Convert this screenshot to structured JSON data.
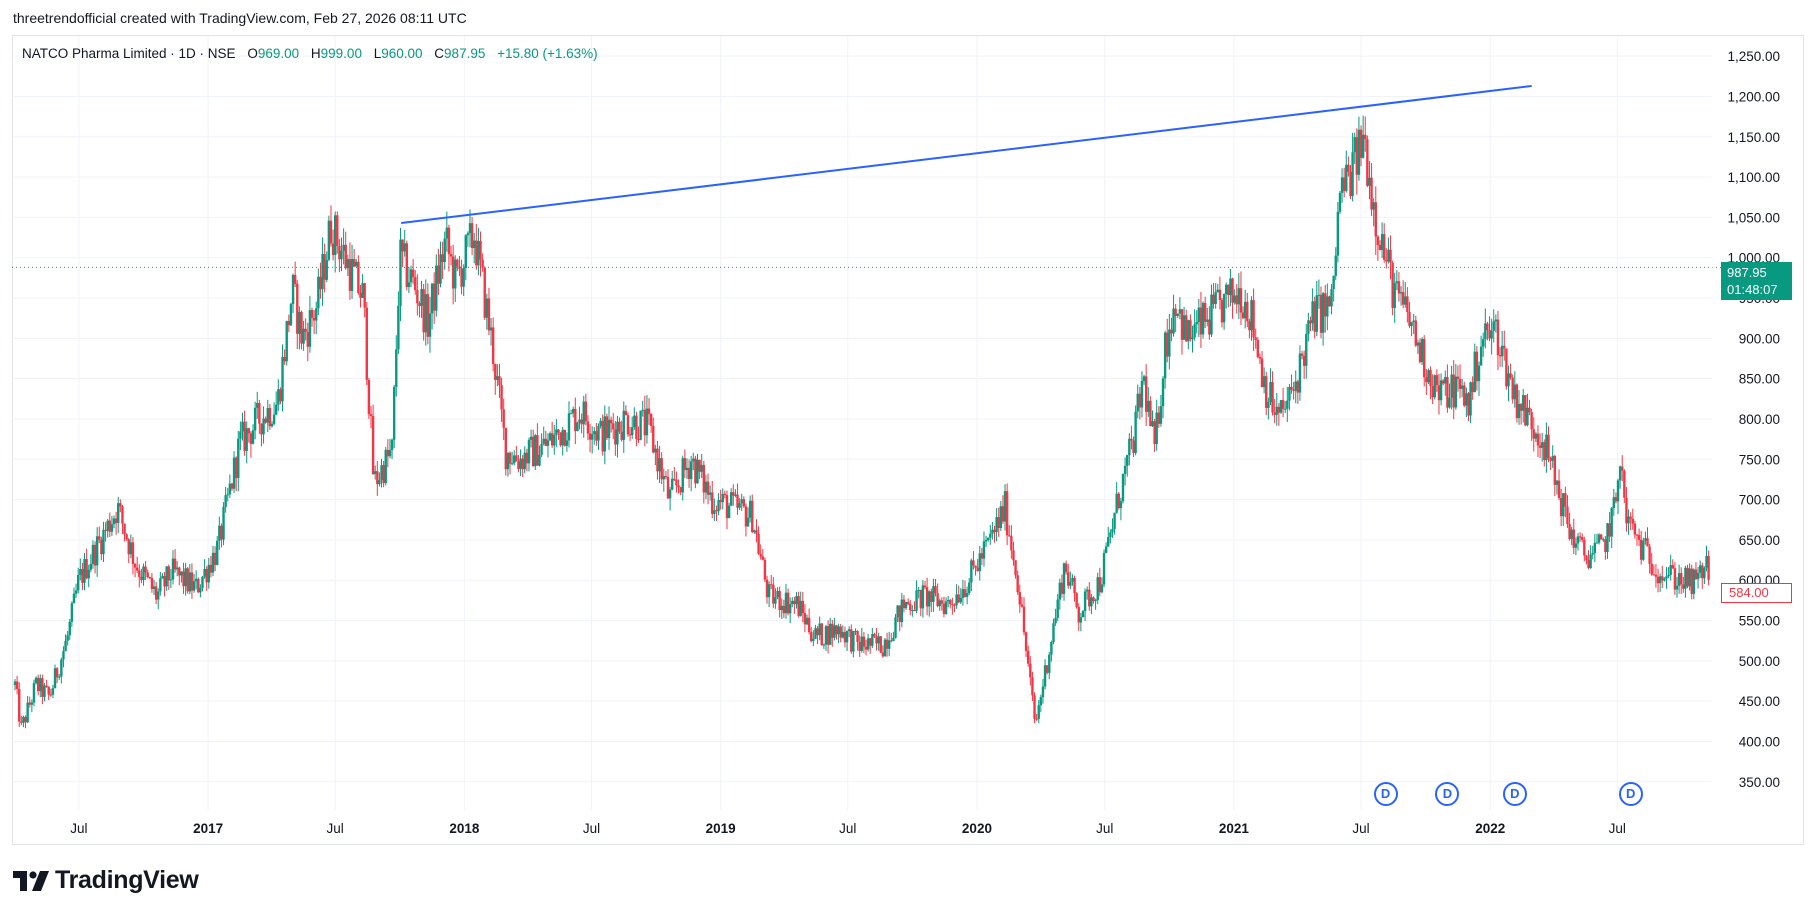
{
  "header": {
    "credit": "threetrendofficial created with TradingView.com, Feb 27, 2026 08:11 UTC"
  },
  "legend": {
    "symbol": "NATCO Pharma Limited · 1D · NSE",
    "open_label": "O",
    "open": "969.00",
    "high_label": "H",
    "high": "999.00",
    "low_label": "L",
    "low": "960.00",
    "close": "987.95",
    "change": "+15.80 (+1.63%)"
  },
  "price_tags": {
    "last_price": "987.95",
    "countdown": "01:48:07",
    "low_marker": "584.00"
  },
  "dividend_badges": [
    "D",
    "D",
    "D",
    "D"
  ],
  "brand": {
    "name": "TradingView"
  },
  "colors": {
    "up": "#089981",
    "down": "#f23645",
    "trendline": "#2962ff",
    "grid": "#f0f3fa",
    "axis_text": "#131722"
  },
  "chart_data": {
    "type": "candlestick",
    "title": "NATCO Pharma Limited · 1D · NSE",
    "xlabel": "",
    "ylabel": "",
    "ylim": [
      315,
      1275
    ],
    "x_range": [
      "2016-04-01",
      "2022-11-10"
    ],
    "y_ticks": [
      "350.00",
      "400.00",
      "450.00",
      "500.00",
      "550.00",
      "600.00",
      "650.00",
      "700.00",
      "750.00",
      "800.00",
      "850.00",
      "900.00",
      "950.00",
      "1,000.00",
      "1,050.00",
      "1,100.00",
      "1,150.00",
      "1,200.00",
      "1,250.00"
    ],
    "y_tick_values": [
      350,
      400,
      450,
      500,
      550,
      600,
      650,
      700,
      750,
      800,
      850,
      900,
      950,
      1000,
      1050,
      1100,
      1150,
      1200,
      1250
    ],
    "x_ticks": [
      {
        "label": "Jul",
        "date": "2016-07-01",
        "bold": false
      },
      {
        "label": "2017",
        "date": "2017-01-01",
        "bold": true
      },
      {
        "label": "Jul",
        "date": "2017-07-01",
        "bold": false
      },
      {
        "label": "2018",
        "date": "2018-01-01",
        "bold": true
      },
      {
        "label": "Jul",
        "date": "2018-07-01",
        "bold": false
      },
      {
        "label": "2019",
        "date": "2019-01-01",
        "bold": true
      },
      {
        "label": "Jul",
        "date": "2019-07-01",
        "bold": false
      },
      {
        "label": "2020",
        "date": "2020-01-01",
        "bold": true
      },
      {
        "label": "Jul",
        "date": "2020-07-01",
        "bold": false
      },
      {
        "label": "2021",
        "date": "2021-01-01",
        "bold": true
      },
      {
        "label": "Jul",
        "date": "2021-07-01",
        "bold": false
      },
      {
        "label": "2022",
        "date": "2022-01-01",
        "bold": true
      },
      {
        "label": "Jul",
        "date": "2022-07-01",
        "bold": false
      }
    ],
    "close_path": [
      [
        "2016-04-01",
        470
      ],
      [
        "2016-04-10",
        415
      ],
      [
        "2016-05-01",
        470
      ],
      [
        "2016-05-20",
        455
      ],
      [
        "2016-06-15",
        530
      ],
      [
        "2016-07-01",
        600
      ],
      [
        "2016-08-01",
        650
      ],
      [
        "2016-08-25",
        690
      ],
      [
        "2016-09-20",
        620
      ],
      [
        "2016-10-20",
        580
      ],
      [
        "2016-11-10",
        610
      ],
      [
        "2016-12-15",
        590
      ],
      [
        "2017-01-15",
        640
      ],
      [
        "2017-02-15",
        770
      ],
      [
        "2017-03-15",
        800
      ],
      [
        "2017-04-10",
        820
      ],
      [
        "2017-05-01",
        960
      ],
      [
        "2017-05-15",
        900
      ],
      [
        "2017-06-05",
        940
      ],
      [
        "2017-06-25",
        1040
      ],
      [
        "2017-07-15",
        1000
      ],
      [
        "2017-08-10",
        950
      ],
      [
        "2017-08-25",
        720
      ],
      [
        "2017-09-20",
        760
      ],
      [
        "2017-10-01",
        1000
      ],
      [
        "2017-10-25",
        960
      ],
      [
        "2017-11-10",
        920
      ],
      [
        "2017-12-05",
        1020
      ],
      [
        "2017-12-20",
        970
      ],
      [
        "2018-01-15",
        1030
      ],
      [
        "2018-02-10",
        890
      ],
      [
        "2018-03-01",
        760
      ],
      [
        "2018-03-20",
        750
      ],
      [
        "2018-05-01",
        770
      ],
      [
        "2018-06-15",
        810
      ],
      [
        "2018-07-15",
        780
      ],
      [
        "2018-08-20",
        800
      ],
      [
        "2018-09-20",
        790
      ],
      [
        "2018-10-20",
        700
      ],
      [
        "2018-11-20",
        750
      ],
      [
        "2018-12-20",
        700
      ],
      [
        "2019-01-20",
        690
      ],
      [
        "2019-02-15",
        680
      ],
      [
        "2019-03-10",
        580
      ],
      [
        "2019-04-20",
        570
      ],
      [
        "2019-05-15",
        530
      ],
      [
        "2019-06-20",
        540
      ],
      [
        "2019-07-15",
        520
      ],
      [
        "2019-08-20",
        520
      ],
      [
        "2019-09-20",
        570
      ],
      [
        "2019-10-20",
        580
      ],
      [
        "2019-11-20",
        570
      ],
      [
        "2019-12-20",
        600
      ],
      [
        "2020-01-20",
        650
      ],
      [
        "2020-02-10",
        690
      ],
      [
        "2020-02-28",
        600
      ],
      [
        "2020-03-24",
        420
      ],
      [
        "2020-04-10",
        500
      ],
      [
        "2020-05-05",
        620
      ],
      [
        "2020-05-25",
        560
      ],
      [
        "2020-06-25",
        600
      ],
      [
        "2020-07-20",
        700
      ],
      [
        "2020-08-10",
        770
      ],
      [
        "2020-08-25",
        850
      ],
      [
        "2020-09-10",
        760
      ],
      [
        "2020-09-25",
        890
      ],
      [
        "2020-10-10",
        950
      ],
      [
        "2020-10-25",
        900
      ],
      [
        "2020-11-20",
        920
      ],
      [
        "2020-12-15",
        940
      ],
      [
        "2021-01-10",
        960
      ],
      [
        "2021-01-25",
        930
      ],
      [
        "2021-02-15",
        840
      ],
      [
        "2021-03-05",
        800
      ],
      [
        "2021-03-25",
        830
      ],
      [
        "2021-04-25",
        930
      ],
      [
        "2021-05-20",
        940
      ],
      [
        "2021-06-01",
        1080
      ],
      [
        "2021-06-15",
        1100
      ],
      [
        "2021-07-05",
        1150
      ],
      [
        "2021-07-20",
        1060
      ],
      [
        "2021-08-05",
        1000
      ],
      [
        "2021-08-20",
        950
      ],
      [
        "2021-09-05",
        930
      ],
      [
        "2021-09-25",
        880
      ],
      [
        "2021-10-20",
        830
      ],
      [
        "2021-11-15",
        840
      ],
      [
        "2021-12-01",
        820
      ],
      [
        "2021-12-20",
        900
      ],
      [
        "2022-01-10",
        910
      ],
      [
        "2022-01-25",
        860
      ],
      [
        "2022-02-05",
        830
      ],
      [
        "2022-02-25",
        800
      ],
      [
        "2022-03-15",
        780
      ],
      [
        "2022-04-05",
        720
      ],
      [
        "2022-04-25",
        660
      ],
      [
        "2022-05-15",
        630
      ],
      [
        "2022-06-10",
        640
      ],
      [
        "2022-06-28",
        690
      ],
      [
        "2022-07-05",
        760
      ],
      [
        "2022-07-12",
        680
      ],
      [
        "2022-08-05",
        640
      ],
      [
        "2022-09-01",
        610
      ],
      [
        "2022-10-01",
        600
      ],
      [
        "2022-10-20",
        595
      ],
      [
        "2022-11-04",
        620
      ],
      [
        "2022-11-10",
        605
      ]
    ],
    "trendline": [
      [
        "2017-10-03",
        1043
      ],
      [
        "2022-03-01",
        1213
      ]
    ],
    "last_price": 987.95,
    "low_marker": 584.0,
    "dividend_dates": [
      "2021-08-05",
      "2021-11-01",
      "2022-02-05",
      "2022-07-20"
    ],
    "grid": true
  }
}
